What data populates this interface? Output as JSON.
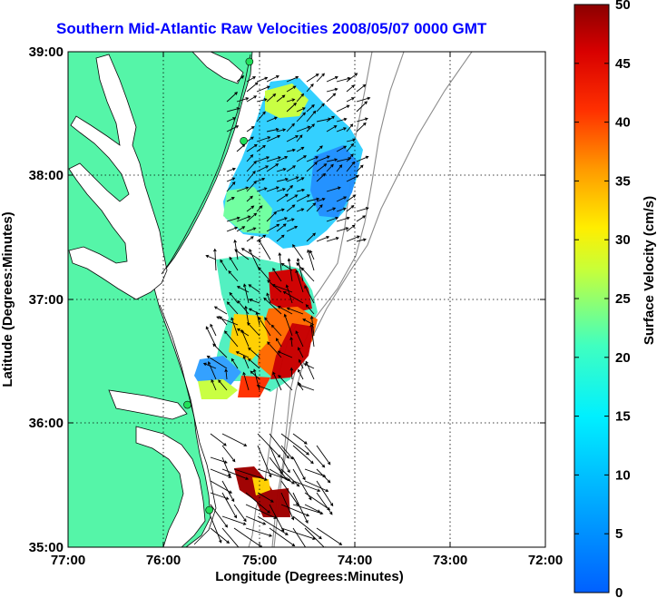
{
  "title": "Southern Mid-Atlantic Raw Velocities 2008/05/07 0000 GMT",
  "map": {
    "xlabel": "Longitude (Degrees:Minutes)",
    "ylabel": "Latitude (Degrees:Minutes)",
    "lon_range": [
      -77,
      -72
    ],
    "lat_range": [
      35,
      39
    ],
    "x_ticks": [
      "77:00",
      "76:00",
      "75:00",
      "74:00",
      "73:00",
      "72:00"
    ],
    "y_ticks": [
      "39:00",
      "38:00",
      "37:00",
      "36:00",
      "35:00"
    ],
    "grid": "dotted",
    "land_color": "#55f5a8",
    "stations": [
      {
        "lon": -75.1,
        "lat": 38.92
      },
      {
        "lon": -75.16,
        "lat": 38.28
      },
      {
        "lon": -75.75,
        "lat": 36.15
      },
      {
        "lon": -75.52,
        "lat": 35.3
      }
    ]
  },
  "colorbar": {
    "label": "Surface Velocity (cm/s)",
    "min": 0,
    "max": 50,
    "ticks": [
      "50",
      "45",
      "40",
      "35",
      "30",
      "25",
      "20",
      "15",
      "10",
      "5",
      "0"
    ]
  }
}
